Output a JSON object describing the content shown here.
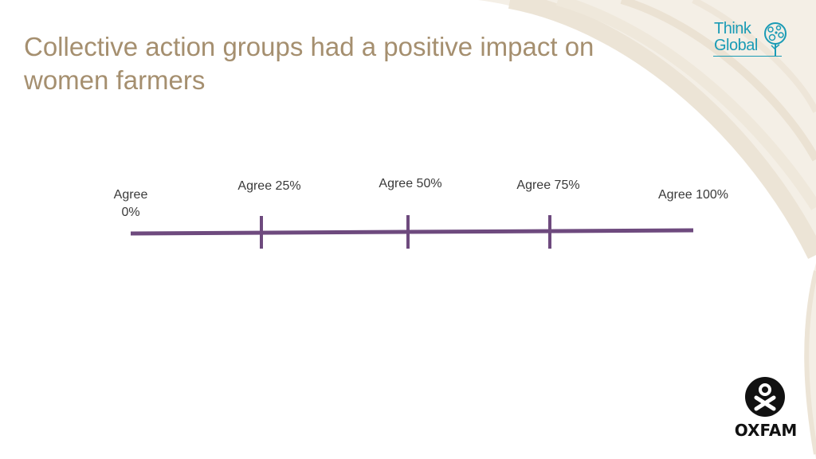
{
  "slide": {
    "title": "Collective action groups had a positive impact on women farmers"
  },
  "scale": {
    "labels": [
      "Agree 0%",
      "Agree 25%",
      "Agree 50%",
      "Agree 75%",
      "Agree 100%"
    ],
    "label_0_line1": "Agree",
    "label_0_line2": "0%",
    "label_25": "Agree 25%",
    "label_50": "Agree 50%",
    "label_75": "Agree 75%",
    "label_100": "Agree 100%",
    "line_color": "#6e4a7e"
  },
  "logos": {
    "think_global": {
      "line1": "Think",
      "line2": "Global",
      "color": "#1a9bb5"
    },
    "oxfam": {
      "wordmark": "OXFAM",
      "color": "#111111"
    }
  },
  "colors": {
    "title": "#a58f6f",
    "background_swirl": "#f4efe6"
  }
}
